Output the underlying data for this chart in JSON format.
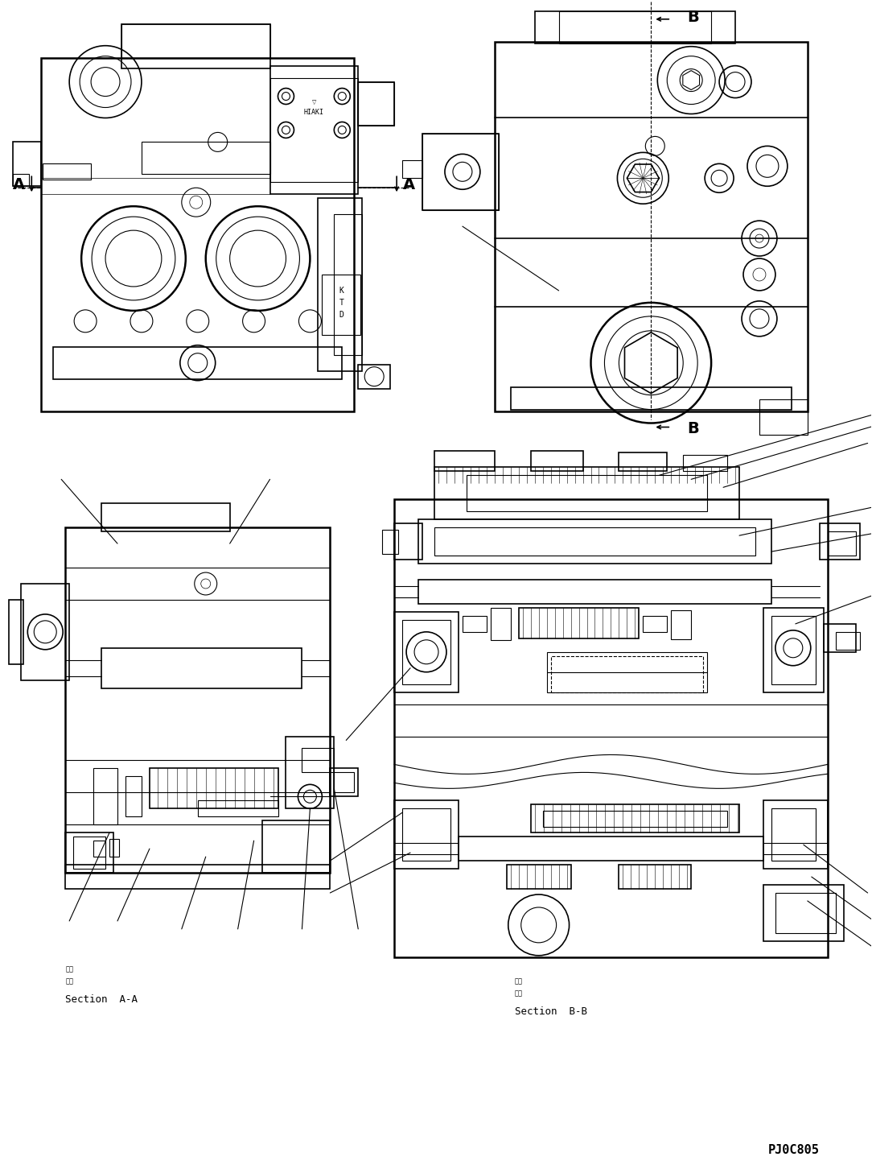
{
  "background_color": "#ffffff",
  "line_color": "#000000",
  "figure_width": 10.84,
  "figure_height": 14.47,
  "dpi": 100,
  "section_AA_label": "Section  A-A",
  "section_BB_label": "Section  B-B",
  "part_number": "PJ0C805",
  "kanji_danmen": "断面",
  "kanji_houkou": "方向"
}
